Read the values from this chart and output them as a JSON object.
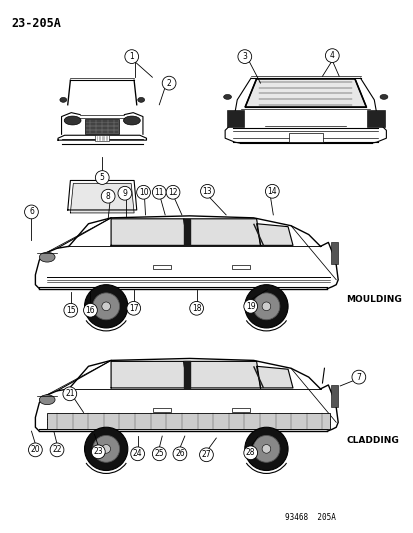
{
  "title": "23-205A",
  "footer": "93468  205A",
  "moulding_label": "MOULDING",
  "cladding_label": "CLADDING",
  "bg_color": "#ffffff",
  "text_color": "#000000",
  "figsize": [
    4.14,
    5.33
  ],
  "dpi": 100
}
